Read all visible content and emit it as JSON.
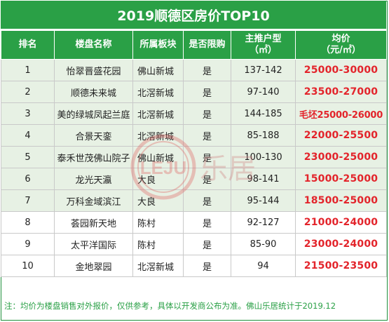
{
  "title": "2019顺德区房价TOP10",
  "headers": [
    "排名",
    "楼盘名称",
    "所属板块",
    "是否限购",
    "主推户型\n（㎡）",
    "均价\n（元/㎡）"
  ],
  "rows": [
    {
      "rank": "1",
      "name": "怡翠晋盛花园",
      "area": "佛山新城",
      "limited": "是",
      "size": "137-142",
      "price": "25000-30000"
    },
    {
      "rank": "2",
      "name": "顺德未来城",
      "area": "北滘新城",
      "limited": "是",
      "size": "97-140",
      "price": "23500-27000"
    },
    {
      "rank": "3",
      "name": "美的绿城凤起兰庭",
      "area": "北滘新城",
      "limited": "是",
      "size": "144-185",
      "price": "毛坯25000-26000"
    },
    {
      "rank": "4",
      "name": "合景天銮",
      "area": "北滘新城",
      "limited": "是",
      "size": "85-188",
      "price": "22000-25500"
    },
    {
      "rank": "5",
      "name": "泰禾世茂佛山院子",
      "area": "佛山新城",
      "limited": "是",
      "size": "100-130",
      "price": "23000-25000"
    },
    {
      "rank": "6",
      "name": "龙光天瀛",
      "area": "大良",
      "limited": "是",
      "size": "98-141",
      "price": "15000-25000"
    },
    {
      "rank": "7",
      "name": "万科金域滨江",
      "area": "大良",
      "limited": "是",
      "size": "95-144",
      "price": "18500-25000"
    },
    {
      "rank": "8",
      "name": "荟园新天地",
      "area": "陈村",
      "limited": "是",
      "size": "92-127",
      "price": "21000-24000"
    },
    {
      "rank": "9",
      "name": "太平洋国际",
      "area": "陈村",
      "limited": "是",
      "size": "85-90",
      "price": "23000-24000"
    },
    {
      "rank": "10",
      "name": "金地翠园",
      "area": "北滘新城",
      "limited": "是",
      "size": "94",
      "price": "21500-23500"
    }
  ],
  "note": "注：均价为楼盘销售对外报价，仅供参考，具体以开发商公布为准。佛山乐居统计于2019.12",
  "watermark": {
    "logo_text": "LEJU",
    "brand_text": "乐居"
  },
  "colors": {
    "header_green": "#2aa046",
    "shaded_row": "#e7f1e4",
    "price_red": "#e3242b"
  }
}
